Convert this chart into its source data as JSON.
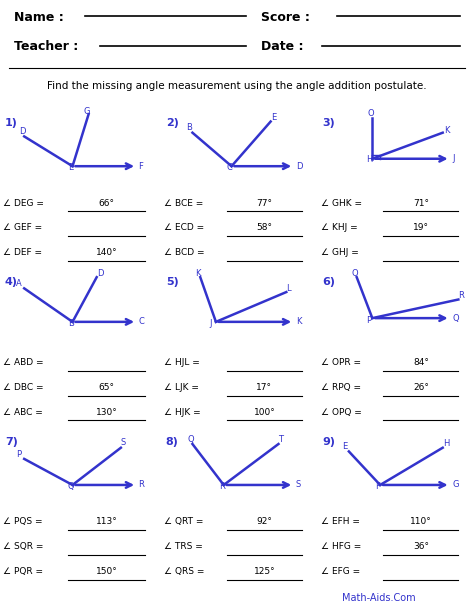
{
  "title_header": "Find the missing angle measurement using the angle addition postulate.",
  "bg_color": "#ffffff",
  "line_color": "#3333cc",
  "text_color": "#3333cc",
  "label_color": "#000000",
  "problems": [
    {
      "num": "1)",
      "angle_labels": [
        "∠ DEG = ",
        "∠ GEF = ",
        "∠ DEF = "
      ],
      "answers": [
        "66°",
        "",
        "140°"
      ],
      "answered": [
        true,
        false,
        true
      ]
    },
    {
      "num": "2)",
      "angle_labels": [
        "∠ BCE = ",
        "∠ ECD = ",
        "∠ BCD = "
      ],
      "answers": [
        "77°",
        "58°",
        ""
      ],
      "answered": [
        true,
        true,
        false
      ]
    },
    {
      "num": "3)",
      "angle_labels": [
        "∠ GHK = ",
        "∠ KHJ = ",
        "∠ GHJ = "
      ],
      "answers": [
        "71°",
        "19°",
        ""
      ],
      "answered": [
        true,
        true,
        false
      ]
    },
    {
      "num": "4)",
      "angle_labels": [
        "∠ ABD = ",
        "∠ DBC = ",
        "∠ ABC = "
      ],
      "answers": [
        "",
        "65°",
        "130°"
      ],
      "answered": [
        false,
        true,
        true
      ]
    },
    {
      "num": "5)",
      "angle_labels": [
        "∠ HJL = ",
        "∠ LJK = ",
        "∠ HJK = "
      ],
      "answers": [
        "",
        "17°",
        "100°"
      ],
      "answered": [
        false,
        true,
        true
      ]
    },
    {
      "num": "6)",
      "angle_labels": [
        "∠ OPR = ",
        "∠ RPQ = ",
        "∠ OPQ = "
      ],
      "answers": [
        "84°",
        "26°",
        ""
      ],
      "answered": [
        true,
        true,
        false
      ]
    },
    {
      "num": "7)",
      "angle_labels": [
        "∠ PQS = ",
        "∠ SQR = ",
        "∠ PQR = "
      ],
      "answers": [
        "113°",
        "",
        "150°"
      ],
      "answered": [
        true,
        false,
        true
      ]
    },
    {
      "num": "8)",
      "angle_labels": [
        "∠ QRT = ",
        "∠ TRS = ",
        "∠ QRS = "
      ],
      "answers": [
        "92°",
        "",
        "125°"
      ],
      "answered": [
        true,
        false,
        true
      ]
    },
    {
      "num": "9)",
      "angle_labels": [
        "∠ EFH = ",
        "∠ HFG = ",
        "∠ EFG = "
      ],
      "answers": [
        "110°",
        "36°",
        ""
      ],
      "answered": [
        true,
        true,
        false
      ]
    }
  ]
}
